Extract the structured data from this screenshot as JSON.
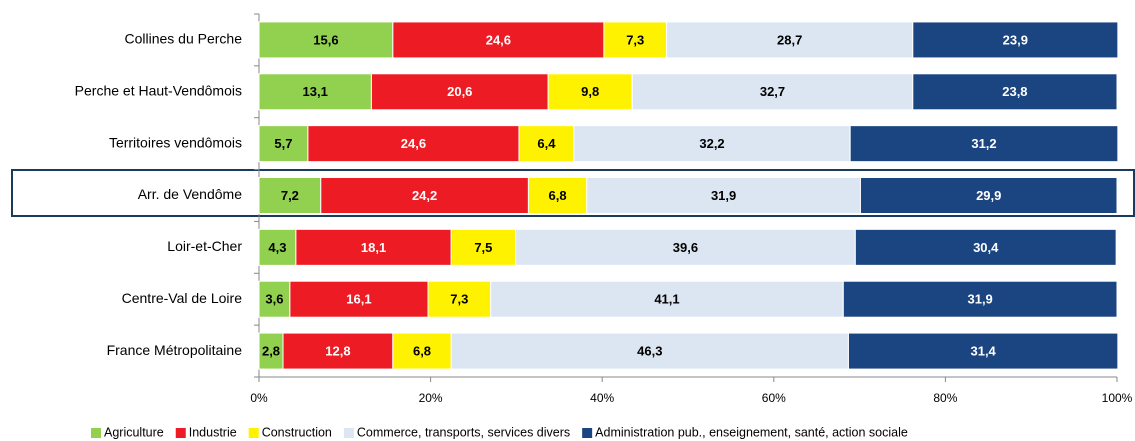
{
  "chart_data": {
    "type": "bar",
    "orientation": "horizontal",
    "stacked": true,
    "categories": [
      "Collines du Perche",
      "Perche et Haut-Vendômois",
      "Territoires vendômois",
      "Arr. de Vendôme",
      "Loir-et-Cher",
      "Centre-Val de Loire",
      "France Métropolitaine"
    ],
    "series": [
      {
        "name": "Agriculture",
        "color": "#92d050",
        "label_color": "#000000",
        "values": [
          15.6,
          13.1,
          5.7,
          7.2,
          4.3,
          3.6,
          2.8
        ],
        "value_labels": [
          "15,6",
          "13,1",
          "5,7",
          "7,2",
          "4,3",
          "3,6",
          "2,8"
        ]
      },
      {
        "name": "Industrie",
        "color": "#ed1c24",
        "label_color": "#ffffff",
        "values": [
          24.6,
          20.6,
          24.6,
          24.2,
          18.1,
          16.1,
          12.8
        ],
        "value_labels": [
          "24,6",
          "20,6",
          "24,6",
          "24,2",
          "18,1",
          "16,1",
          "12,8"
        ]
      },
      {
        "name": "Construction",
        "color": "#fff200",
        "label_color": "#000000",
        "values": [
          7.3,
          9.8,
          6.4,
          6.8,
          7.5,
          7.3,
          6.8
        ],
        "value_labels": [
          "7,3",
          "9,8",
          "6,4",
          "6,8",
          "7,5",
          "7,3",
          "6,8"
        ]
      },
      {
        "name": "Commerce, transports, services divers",
        "color": "#dce6f2",
        "label_color": "#000000",
        "values": [
          28.7,
          32.7,
          32.2,
          31.9,
          39.6,
          41.1,
          46.3
        ],
        "value_labels": [
          "28,7",
          "32,7",
          "32,2",
          "31,9",
          "39,6",
          "41,1",
          "46,3"
        ]
      },
      {
        "name": "Administration pub., enseignement, santé, action sociale",
        "color": "#1b4580",
        "label_color": "#ffffff",
        "values": [
          23.9,
          23.8,
          31.2,
          29.9,
          30.4,
          31.9,
          31.4
        ],
        "value_labels": [
          "23,9",
          "23,8",
          "31,2",
          "29,9",
          "30,4",
          "31,9",
          "31,4"
        ]
      }
    ],
    "xlim": [
      0,
      100
    ],
    "xticks": [
      {
        "value": 0,
        "label": "0%"
      },
      {
        "value": 20,
        "label": "20%"
      },
      {
        "value": 40,
        "label": "40%"
      },
      {
        "value": 60,
        "label": "60%"
      },
      {
        "value": 80,
        "label": "80%"
      },
      {
        "value": 100,
        "label": "100%"
      }
    ],
    "legend": "bottom"
  }
}
